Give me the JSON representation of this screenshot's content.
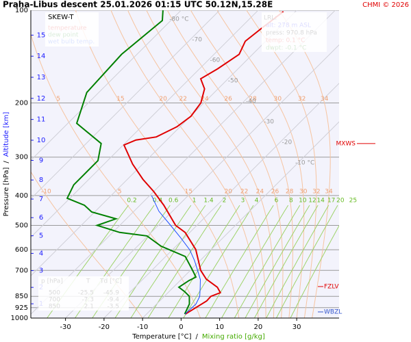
{
  "chart_data": {
    "type": "skew-t",
    "title": "Praha-Libus   descent  25.01.2026 01:15 UTC  50.12N,15.28E",
    "credit": "CHMI © 2026",
    "subtitle": "SKEW-T",
    "x_label": {
      "text": "Temperature [°C]",
      "separator": "/",
      "secondary": "Mixing ratio [g/kg]"
    },
    "y_label": {
      "text": "Pressure [hPa]",
      "separator": "/",
      "secondary": "Altitude [km]"
    },
    "xlim": [
      -39,
      41
    ],
    "xticks": [
      -30,
      -20,
      -10,
      0,
      10,
      20,
      30
    ],
    "ylim": [
      1000,
      100
    ],
    "yticks": [
      100,
      200,
      300,
      400,
      500,
      600,
      700,
      850,
      925,
      1000
    ],
    "log_y": true,
    "altitude_ticks": [
      1,
      2,
      3,
      4,
      5,
      6,
      7,
      8,
      9,
      10,
      11,
      12,
      13,
      14,
      15
    ],
    "altitude_color": "#1a1aff",
    "isotherms": [
      {
        "value": -80,
        "label": "-80 °C"
      },
      -70,
      -60,
      -50,
      -40,
      -30,
      -20,
      {
        "value": -10,
        "label": "-10 °C"
      }
    ],
    "pseudo_adiabats": [
      -10,
      5,
      15,
      20,
      22,
      24,
      26,
      28,
      30,
      32,
      34
    ],
    "mixing_ratios": [
      0.2,
      0.4,
      0.6,
      1,
      1.4,
      2,
      3,
      4,
      6,
      8,
      10,
      12,
      14,
      17,
      20,
      25
    ],
    "series": [
      {
        "name": "temperature",
        "color": "#e00000",
        "pressure": [
          971,
          880,
          850,
          827,
          794,
          747,
          700,
          599,
          527,
          500,
          430,
          388,
          354,
          316,
          274,
          264,
          258,
          239,
          221,
          200,
          180,
          167,
          155,
          139,
          126,
          114,
          101
        ],
        "values": [
          0.1,
          2.2,
          2.1,
          3.6,
          1.4,
          -3.6,
          -7.3,
          -14.0,
          -21.2,
          -25.5,
          -33.8,
          -40.0,
          -46.0,
          -52.6,
          -59.8,
          -58.0,
          -53.5,
          -50.8,
          -49.9,
          -50.8,
          -53.5,
          -57.1,
          -55.3,
          -53.5,
          -55.3,
          -54.4,
          -53.1
        ]
      },
      {
        "name": "dew point",
        "color": "#008000",
        "pressure": [
          971,
          900,
          850,
          820,
          794,
          755,
          736,
          700,
          631,
          584,
          541,
          527,
          500,
          476,
          452,
          430,
          408,
          369,
          308,
          271,
          233,
          185,
          139,
          108,
          100
        ],
        "values": [
          -0.1,
          -1.5,
          -3.5,
          -6.0,
          -8.6,
          -7.7,
          -6.8,
          -9.4,
          -14.9,
          -23.9,
          -30.2,
          -38.2,
          -45.9,
          -42.7,
          -50.8,
          -54.4,
          -60.7,
          -62.5,
          -62.5,
          -66.1,
          -77.7,
          -83.1,
          -84.0,
          -82.2,
          -84.7
        ]
      },
      {
        "name": "wet bulb temp.",
        "color": "#1a4dff",
        "pressure": [
          971,
          900,
          850,
          800,
          750,
          700,
          650,
          600,
          550,
          500,
          450,
          400
        ],
        "values": [
          0.0,
          0.2,
          -0.8,
          -2.8,
          -5.0,
          -8.1,
          -11.5,
          -15.5,
          -20.8,
          -26.8,
          -33.5,
          -39.5
        ]
      }
    ],
    "lrl": {
      "title": "LRL:",
      "lines": [
        {
          "text": "alt: 278 m ASL",
          "color": "#1a1aff"
        },
        {
          "text": "press: 970.8 hPa",
          "color": "#000000"
        },
        {
          "text": "temp: 0.1 °C",
          "color": "#e00000"
        },
        {
          "text": "dwpt: -0.1 °C",
          "color": "#008000"
        }
      ]
    },
    "table": {
      "header": [
        "p [hPa]",
        "T",
        "Td [°C]"
      ],
      "rows": [
        [
          500,
          -25.5,
          -45.9
        ],
        [
          700,
          -7.3,
          -9.4
        ],
        [
          850,
          2.1,
          -3.5
        ]
      ]
    },
    "levels": [
      {
        "label": "MXWS",
        "pressure": 271,
        "color": "#e00000"
      },
      {
        "label": "FZLV",
        "pressure": 790,
        "color": "#e00000"
      },
      {
        "label": "WBZL",
        "pressure": 955,
        "color": "#3355cc"
      }
    ]
  }
}
